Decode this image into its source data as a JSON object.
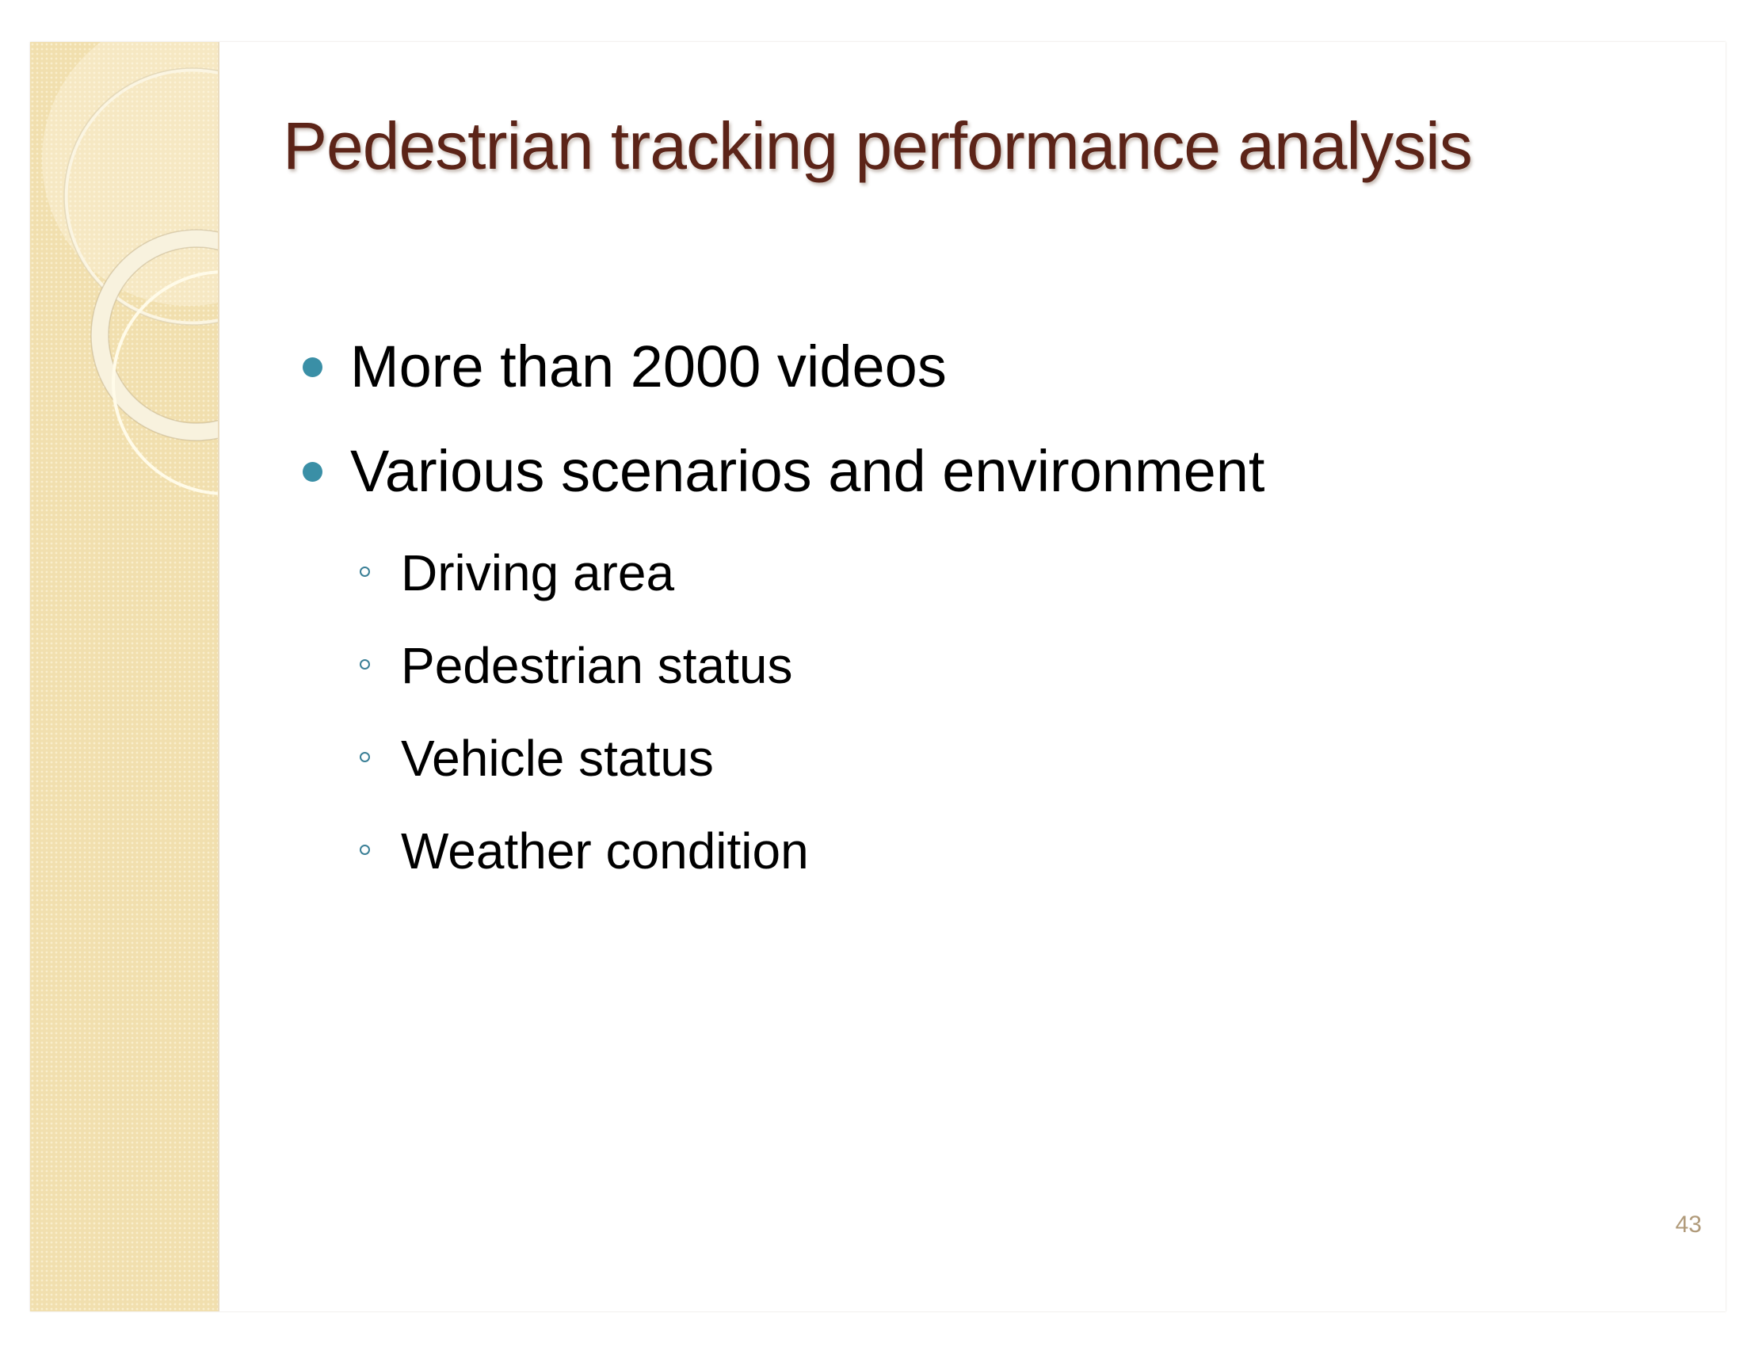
{
  "slide": {
    "title": "Pedestrian tracking performance analysis",
    "bullets": [
      {
        "text": "More than 2000 videos"
      },
      {
        "text": "Various scenarios and environment"
      }
    ],
    "sub_bullets": [
      {
        "text": "Driving area"
      },
      {
        "text": "Pedestrian status"
      },
      {
        "text": "Vehicle status"
      },
      {
        "text": "Weather condition"
      }
    ],
    "page_number": "43"
  },
  "theme": {
    "title_color": "#5c2418",
    "bullet_color": "#3a8fa6",
    "sidebar_color": "#f1dfae",
    "page_number_color": "#b09a7a"
  }
}
